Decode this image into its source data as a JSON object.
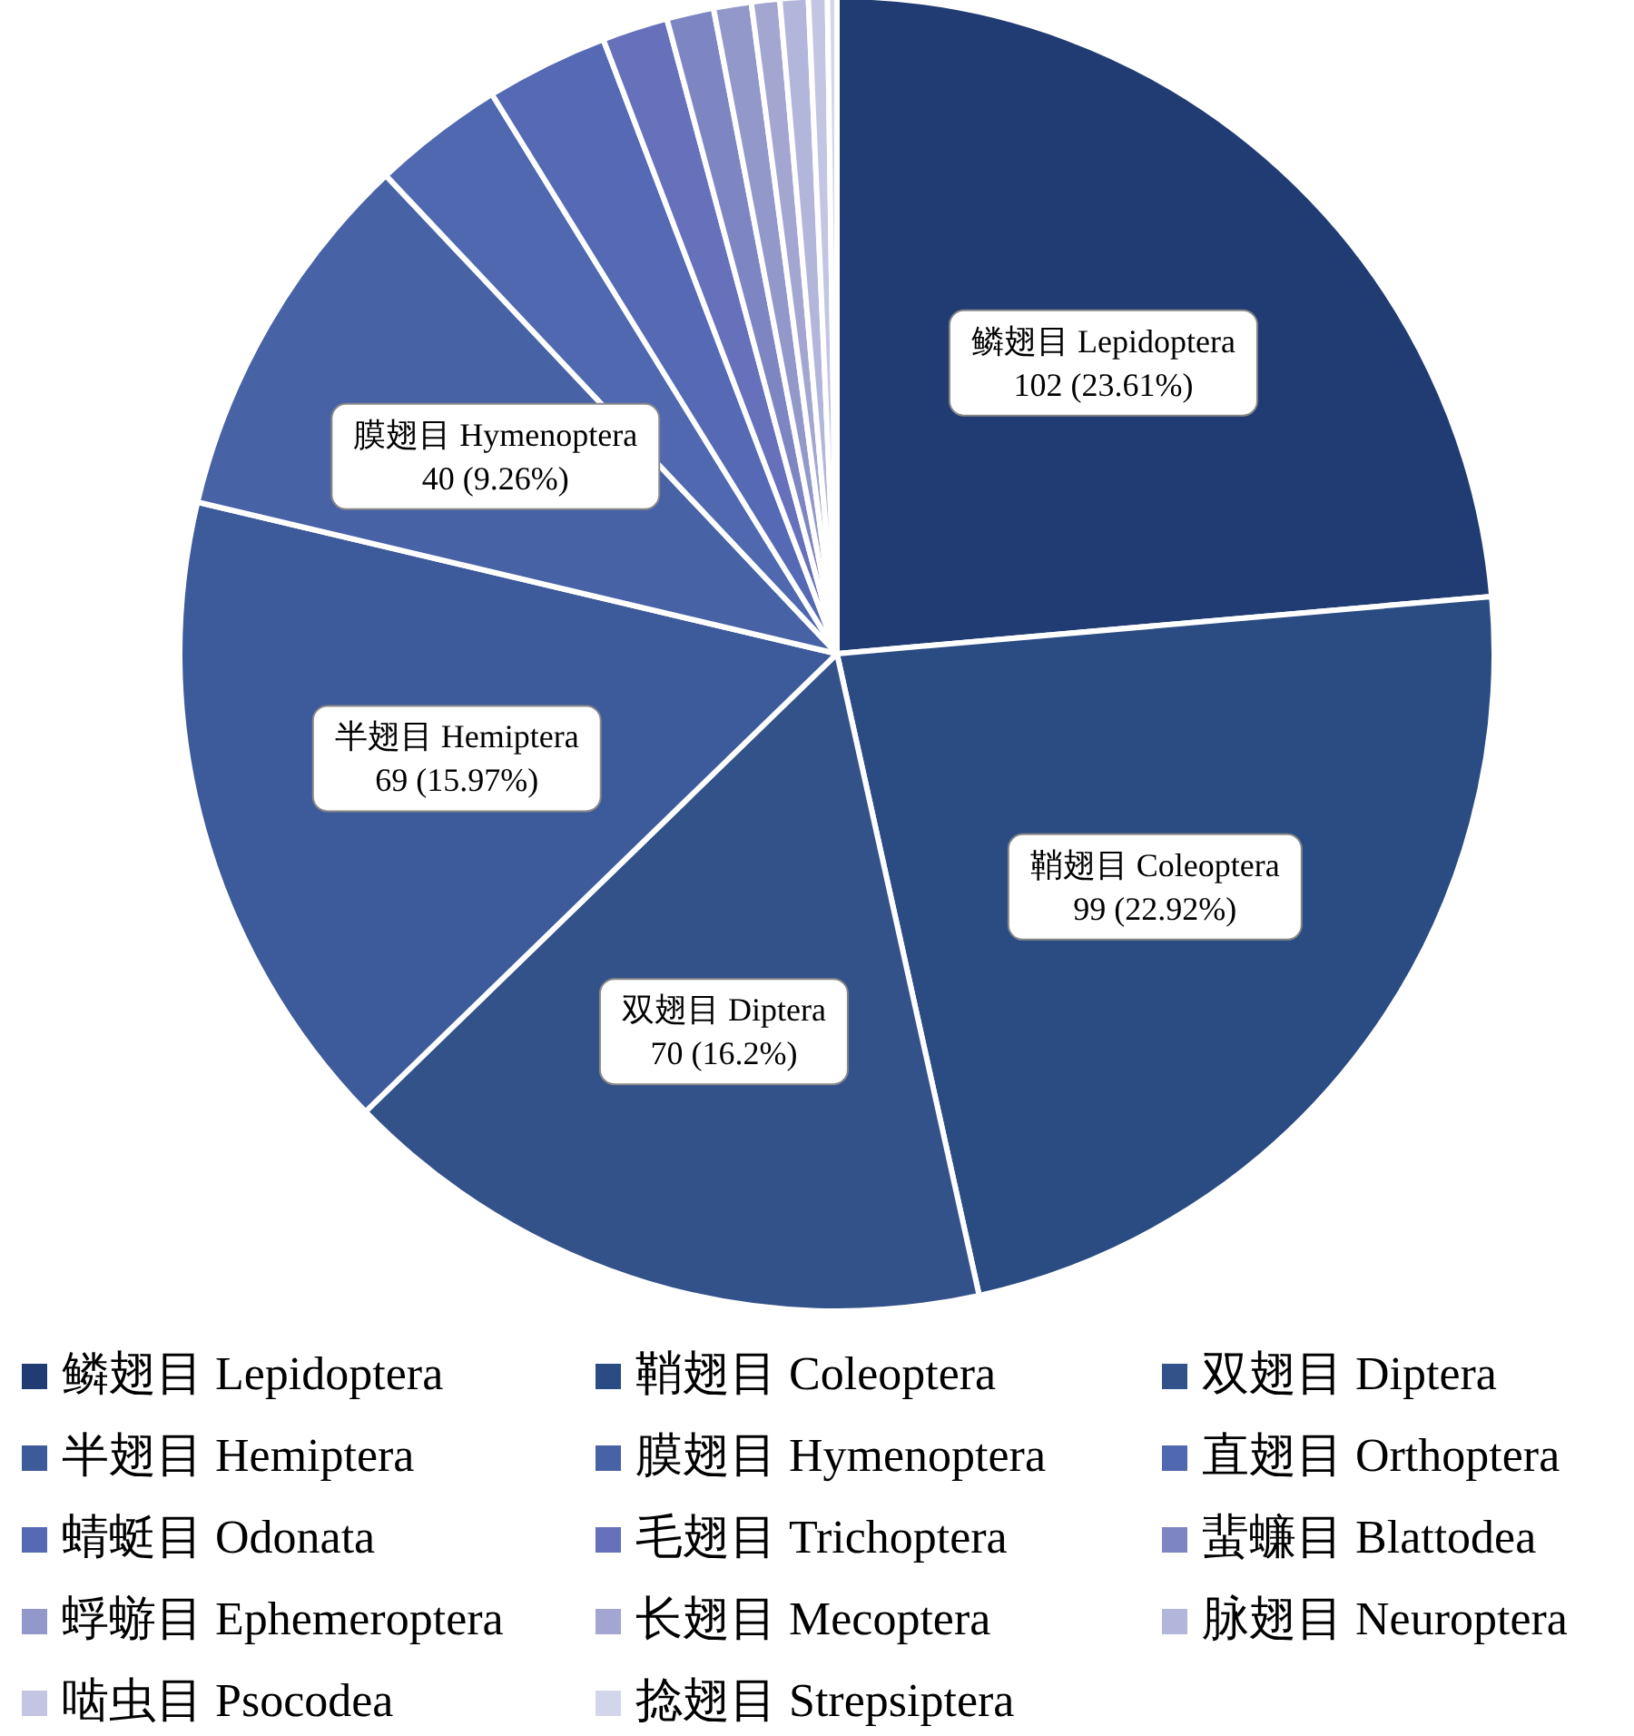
{
  "chart_data": {
    "type": "pie",
    "legend": "bottom",
    "categories": [
      "鳞翅目 Lepidoptera",
      "鞘翅目 Coleoptera",
      "双翅目 Diptera",
      "半翅目 Hemiptera",
      "膜翅目 Hymenoptera",
      "直翅目 Orthoptera",
      "蜻蜓目 Odonata",
      "毛翅目 Trichoptera",
      "蜚蠊目 Blattodea",
      "蜉蝣目 Ephemeroptera",
      "长翅目 Mecoptera",
      "脉翅目 Neuroptera",
      "啮虫目 Psocodea",
      "捻翅目 Strepsiptera"
    ],
    "values": [
      102,
      99,
      70,
      69,
      40,
      14,
      13,
      7,
      5,
      4,
      3,
      3,
      2,
      1
    ],
    "value_labels": [
      "102 (23.61%)",
      "99 (22.92%)",
      "70 (16.2%)",
      "69 (15.97%)",
      "40 (9.26%)",
      null,
      null,
      null,
      null,
      null,
      null,
      null,
      null,
      null
    ],
    "colors": [
      "#213c72",
      "#2b4c82",
      "#34528a",
      "#3d5a9a",
      "#4862a6",
      "#4f68b0",
      "#5569b4",
      "#6670bb",
      "#7d86c2",
      "#9298c9",
      "#a2a6d0",
      "#b2b6da",
      "#c3c5e3",
      "#d3d5eb"
    ]
  }
}
